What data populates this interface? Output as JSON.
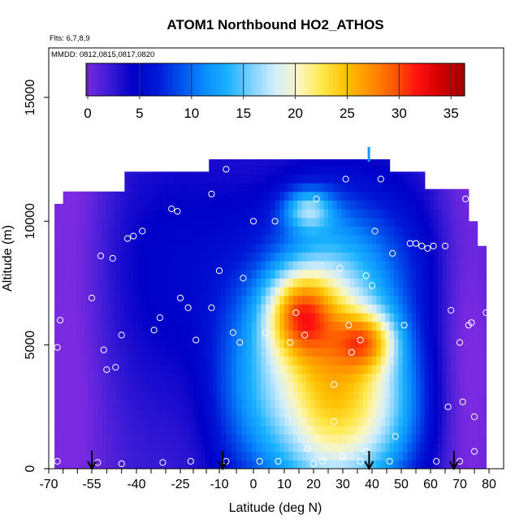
{
  "chart_data": {
    "type": "heatmap",
    "title": "ATOM1 Northbound HO2_ATHOS",
    "subtitle_lines": [
      "Flts: 6,7,8,9",
      "MMDD: 0812,0815,0817,0820"
    ],
    "xlabel": "Latitude (deg N)",
    "ylabel": "Altitude (m)",
    "xlim": [
      -70,
      80
    ],
    "ylim": [
      0,
      17000
    ],
    "x_tick_labels": [
      "-70",
      "-55",
      "-40",
      "-25",
      "-10",
      "0",
      "10",
      "20",
      "30",
      "40",
      "50",
      "60",
      "70",
      "80"
    ],
    "x_tick_values": [
      -70,
      -55,
      -40,
      -25,
      -10,
      0,
      10,
      20,
      30,
      40,
      50,
      60,
      70,
      80
    ],
    "y_ticks": [
      0,
      5000,
      10000,
      15000
    ],
    "colorbar": {
      "range": [
        0,
        36
      ],
      "ticks": [
        0,
        5,
        10,
        15,
        20,
        25,
        30,
        35
      ],
      "colors": [
        "#7a2ae0",
        "#3a1bd6",
        "#0000c8",
        "#0018d8",
        "#0050ec",
        "#0a8cff",
        "#1ab2ff",
        "#7ed2ff",
        "#d2eefc",
        "#fbf6c0",
        "#ffe84a",
        "#ffc000",
        "#ff9100",
        "#ff5a00",
        "#ff1010",
        "#d00000",
        "#a00000"
      ]
    },
    "grid": false,
    "flight_markers_latitude": [
      -55,
      -9,
      39,
      68
    ],
    "observation_points": [
      {
        "lat": -69.5,
        "alt": 10900
      },
      {
        "lat": -67,
        "alt": 300
      },
      {
        "lat": -66,
        "alt": 6000
      },
      {
        "lat": -67,
        "alt": 4900
      },
      {
        "lat": -55,
        "alt": 6900
      },
      {
        "lat": -52,
        "alt": 8600
      },
      {
        "lat": -51,
        "alt": 4800
      },
      {
        "lat": -50,
        "alt": 4000
      },
      {
        "lat": -48,
        "alt": 8500
      },
      {
        "lat": -47,
        "alt": 4100
      },
      {
        "lat": -45,
        "alt": 5400
      },
      {
        "lat": -43,
        "alt": 9300
      },
      {
        "lat": -41,
        "alt": 9400
      },
      {
        "lat": -38,
        "alt": 9600
      },
      {
        "lat": -34,
        "alt": 5600
      },
      {
        "lat": -32,
        "alt": 6100
      },
      {
        "lat": -28,
        "alt": 10500
      },
      {
        "lat": -26,
        "alt": 10400
      },
      {
        "lat": -25,
        "alt": 6900
      },
      {
        "lat": -22,
        "alt": 6500
      },
      {
        "lat": -19,
        "alt": 5200
      },
      {
        "lat": -13,
        "alt": 6500
      },
      {
        "lat": -13,
        "alt": 11100
      },
      {
        "lat": -10,
        "alt": 8000
      },
      {
        "lat": -8,
        "alt": 12100
      },
      {
        "lat": -6,
        "alt": 5500
      },
      {
        "lat": -4,
        "alt": 5100
      },
      {
        "lat": -3,
        "alt": 7700
      },
      {
        "lat": 0,
        "alt": 10000
      },
      {
        "lat": 4,
        "alt": 5500
      },
      {
        "lat": 7,
        "alt": 10000
      },
      {
        "lat": 12,
        "alt": 5100
      },
      {
        "lat": 14,
        "alt": 6300
      },
      {
        "lat": 17,
        "alt": 5400
      },
      {
        "lat": 21,
        "alt": 10900
      },
      {
        "lat": 27,
        "alt": 1900
      },
      {
        "lat": 27,
        "alt": 3400
      },
      {
        "lat": 29,
        "alt": 8100
      },
      {
        "lat": 31,
        "alt": 11700
      },
      {
        "lat": 32,
        "alt": 5800
      },
      {
        "lat": 33,
        "alt": 4700
      },
      {
        "lat": 36,
        "alt": 5200
      },
      {
        "lat": 38,
        "alt": 7800
      },
      {
        "lat": 40,
        "alt": 7400
      },
      {
        "lat": 41,
        "alt": 9600
      },
      {
        "lat": 43,
        "alt": 11700
      },
      {
        "lat": 47,
        "alt": 8700
      },
      {
        "lat": 51,
        "alt": 5800
      },
      {
        "lat": 53,
        "alt": 9100
      },
      {
        "lat": 55,
        "alt": 9100
      },
      {
        "lat": 57,
        "alt": 9000
      },
      {
        "lat": 59,
        "alt": 8900
      },
      {
        "lat": 61,
        "alt": 9000
      },
      {
        "lat": 65,
        "alt": 9000
      },
      {
        "lat": 67,
        "alt": 6400
      },
      {
        "lat": 68,
        "alt": 11700
      },
      {
        "lat": 70,
        "alt": 5100
      },
      {
        "lat": 71,
        "alt": 2700
      },
      {
        "lat": 72,
        "alt": 10900
      },
      {
        "lat": 73,
        "alt": 5800
      },
      {
        "lat": 74,
        "alt": 5900
      },
      {
        "lat": 75,
        "alt": 2100
      },
      {
        "lat": 75,
        "alt": 700
      },
      {
        "lat": 77,
        "alt": 10700
      },
      {
        "lat": 78,
        "alt": 10100
      },
      {
        "lat": 79,
        "alt": 6300
      },
      {
        "lat": 66,
        "alt": 2500
      },
      {
        "lat": 18,
        "alt": 800
      },
      {
        "lat": 20,
        "alt": 200
      },
      {
        "lat": 23,
        "alt": 300
      },
      {
        "lat": 30,
        "alt": 500
      },
      {
        "lat": 36,
        "alt": 300
      },
      {
        "lat": -31,
        "alt": 250
      },
      {
        "lat": -21,
        "alt": 300
      },
      {
        "lat": -8,
        "alt": 300
      },
      {
        "lat": 2,
        "alt": 300
      },
      {
        "lat": 8,
        "alt": 300
      },
      {
        "lat": 46,
        "alt": 300
      },
      {
        "lat": 62,
        "alt": 300
      },
      {
        "lat": 70,
        "alt": 300
      },
      {
        "lat": -45,
        "alt": 200
      },
      {
        "lat": -53,
        "alt": 250
      },
      {
        "lat": 38,
        "alt": 700
      },
      {
        "lat": 48,
        "alt": 1300
      }
    ]
  }
}
